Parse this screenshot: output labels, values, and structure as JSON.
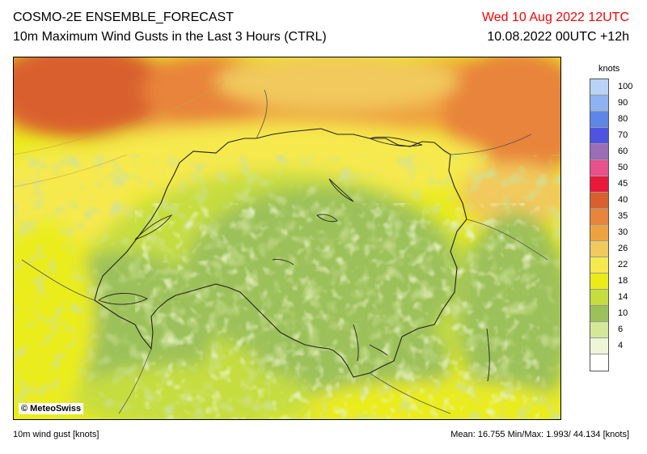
{
  "header": {
    "title": "COSMO-2E ENSEMBLE_FORECAST",
    "subtitle": "10m Maximum Wind Gusts in the Last 3 Hours (CTRL)",
    "valid_time": "Wed 10 Aug 2022 12UTC",
    "run_time": "10.08.2022 00UTC +12h"
  },
  "map": {
    "copyright": "© MeteoSwiss"
  },
  "legend": {
    "unit": "knots",
    "levels": [
      {
        "label": "100",
        "color": "#b9d2f5"
      },
      {
        "label": "90",
        "color": "#8fb2f0"
      },
      {
        "label": "80",
        "color": "#5c86e8"
      },
      {
        "label": "70",
        "color": "#4f54e0"
      },
      {
        "label": "60",
        "color": "#9a6db6"
      },
      {
        "label": "50",
        "color": "#e8518c"
      },
      {
        "label": "45",
        "color": "#e8193b"
      },
      {
        "label": "40",
        "color": "#d9602d"
      },
      {
        "label": "35",
        "color": "#e8843b"
      },
      {
        "label": "30",
        "color": "#eea23f"
      },
      {
        "label": "26",
        "color": "#f1c95c"
      },
      {
        "label": "22",
        "color": "#f5e94e"
      },
      {
        "label": "18",
        "color": "#eaec1a"
      },
      {
        "label": "14",
        "color": "#c6dd3f"
      },
      {
        "label": "10",
        "color": "#9dc15a"
      },
      {
        "label": "6",
        "color": "#d5e89a"
      },
      {
        "label": "4",
        "color": "#eef6d8"
      },
      {
        "label": "",
        "color": "#ffffff"
      }
    ]
  },
  "footer": {
    "left": "10m wind gust [knots]",
    "right": "Mean: 16.755 Min/Max:  1.993/ 44.134 [knots]"
  }
}
